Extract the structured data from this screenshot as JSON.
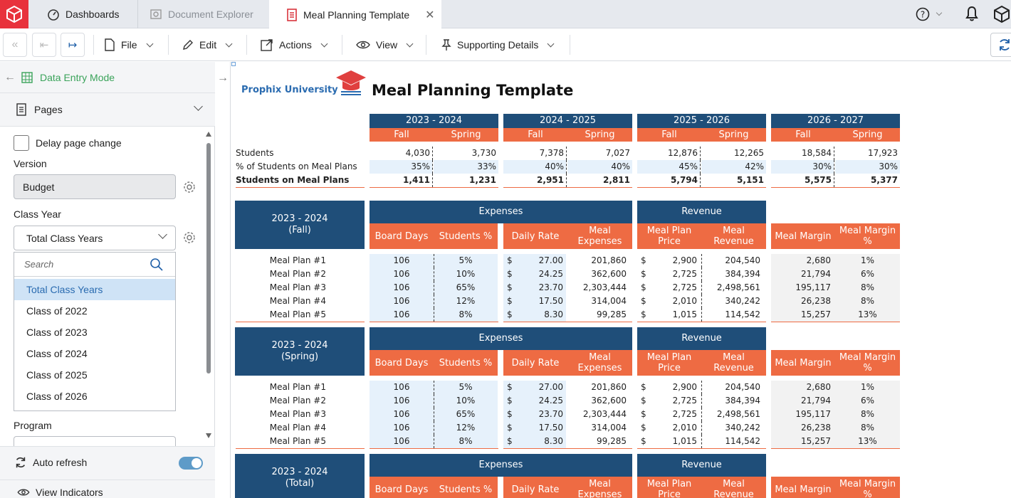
{
  "tabs": [
    {
      "label": "Dashboards",
      "icon": "gauge-icon"
    },
    {
      "label": "Document Explorer",
      "icon": "document-explorer-icon"
    },
    {
      "label": "Meal Planning Template",
      "icon": "document-icon"
    }
  ],
  "toolbar": {
    "file": "File",
    "edit": "Edit",
    "actions": "Actions",
    "view": "View",
    "supporting": "Supporting Details"
  },
  "panel": {
    "mode": "Data Entry Mode",
    "pages": "Pages",
    "delay": "Delay page change",
    "version_label": "Version",
    "version_value": "Budget",
    "class_year_label": "Class Year",
    "class_year_value": "Total Class Years",
    "search_placeholder": "Search",
    "options": [
      "Total Class Years",
      "Class of 2022",
      "Class of 2023",
      "Class of 2024",
      "Class of 2025",
      "Class of 2026"
    ],
    "program_label": "Program",
    "auto_refresh": "Auto refresh",
    "view_indicators": "View Indicators"
  },
  "report": {
    "brand": "Prophix University",
    "title": "Meal Planning Template",
    "years": [
      "2023 - 2024",
      "2024 - 2025",
      "2025 - 2026",
      "2026 - 2027"
    ],
    "fall": "Fall",
    "spring": "Spring",
    "row_labels": [
      "Students",
      "% of Students on Meal Plans",
      "Students on Meal Plans"
    ],
    "summary": [
      [
        "4,030",
        "3,730",
        "7,378",
        "7,027",
        "12,876",
        "12,265",
        "18,584",
        "17,923"
      ],
      [
        "35%",
        "33%",
        "40%",
        "40%",
        "45%",
        "42%",
        "30%",
        "30%"
      ],
      [
        "1,411",
        "1,231",
        "2,951",
        "2,811",
        "5,794",
        "5,151",
        "5,575",
        "5,377"
      ]
    ],
    "expenses": "Expenses",
    "revenue": "Revenue",
    "col_heads": [
      "Board Days",
      "Students %",
      "Daily Rate",
      "Meal Expenses",
      "Meal Plan Price",
      "Meal Revenue",
      "Meal Margin",
      "Meal Margin %"
    ],
    "currency": "$",
    "sections": [
      {
        "title": "2023 - 2024",
        "sub": "(Fall)"
      },
      {
        "title": "2023 - 2024",
        "sub": "(Spring)"
      },
      {
        "title": "2023 - 2024",
        "sub": "(Total)"
      }
    ],
    "plans": [
      {
        "name": "Meal Plan #1",
        "days": "106",
        "pct": "5%",
        "rate": "27.00",
        "exp": "201,860",
        "price": "2,900",
        "rev": "204,540",
        "margin": "2,680",
        "mpct": "1%"
      },
      {
        "name": "Meal Plan #2",
        "days": "106",
        "pct": "10%",
        "rate": "24.25",
        "exp": "362,600",
        "price": "2,725",
        "rev": "384,394",
        "margin": "21,794",
        "mpct": "6%"
      },
      {
        "name": "Meal Plan #3",
        "days": "106",
        "pct": "65%",
        "rate": "23.70",
        "exp": "2,303,444",
        "price": "2,725",
        "rev": "2,498,561",
        "margin": "195,117",
        "mpct": "8%"
      },
      {
        "name": "Meal Plan #4",
        "days": "106",
        "pct": "12%",
        "rate": "17.50",
        "exp": "314,004",
        "price": "2,010",
        "rev": "340,242",
        "margin": "26,238",
        "mpct": "8%"
      },
      {
        "name": "Meal Plan #5",
        "days": "106",
        "pct": "8%",
        "rate": "8.30",
        "exp": "99,285",
        "price": "1,015",
        "rev": "114,542",
        "margin": "15,257",
        "mpct": "13%"
      }
    ]
  }
}
